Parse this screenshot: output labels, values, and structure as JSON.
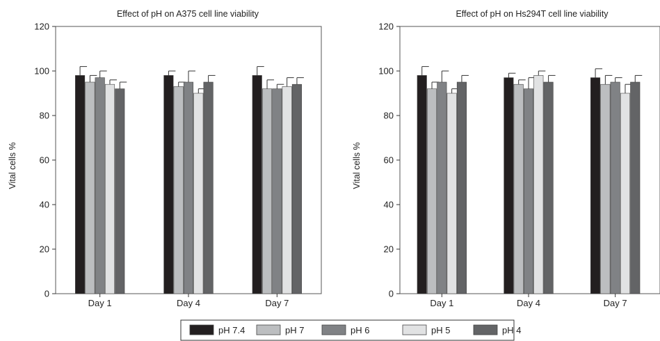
{
  "chart_data": [
    {
      "type": "bar",
      "title": "Effect of pH on A375 cell line viability",
      "ylabel": "Vital cells %",
      "xlabel": "",
      "ylim": [
        0,
        120
      ],
      "yticks": [
        0,
        20,
        40,
        60,
        80,
        100,
        120
      ],
      "categories": [
        "Day 1",
        "Day 4",
        "Day 7"
      ],
      "series": [
        {
          "name": "pH 7.4",
          "color": "#231f20",
          "values": [
            98,
            98,
            98
          ],
          "errors": [
            4,
            2,
            4
          ]
        },
        {
          "name": "pH 7",
          "color": "#bcbec0",
          "values": [
            95,
            93,
            92
          ],
          "errors": [
            3,
            2,
            4
          ]
        },
        {
          "name": "pH 6",
          "color": "#808285",
          "values": [
            97,
            95,
            92
          ],
          "errors": [
            3,
            5,
            2
          ]
        },
        {
          "name": "pH 5",
          "color": "#e1e2e3",
          "values": [
            94,
            90,
            93
          ],
          "errors": [
            2,
            2,
            4
          ]
        },
        {
          "name": "pH 4",
          "color": "#636466",
          "values": [
            92,
            95,
            94
          ],
          "errors": [
            3,
            3,
            3
          ]
        }
      ]
    },
    {
      "type": "bar",
      "title": "Effect of pH on Hs294T cell line viability",
      "ylabel": "Vital cells %",
      "xlabel": "",
      "ylim": [
        0,
        120
      ],
      "yticks": [
        0,
        20,
        40,
        60,
        80,
        100,
        120
      ],
      "categories": [
        "Day 1",
        "Day 4",
        "Day 7"
      ],
      "series": [
        {
          "name": "pH 7.4",
          "color": "#231f20",
          "values": [
            98,
            97,
            97
          ],
          "errors": [
            4,
            2,
            4
          ]
        },
        {
          "name": "pH 7",
          "color": "#bcbec0",
          "values": [
            92,
            94,
            94
          ],
          "errors": [
            3,
            2,
            4
          ]
        },
        {
          "name": "pH 6",
          "color": "#808285",
          "values": [
            95,
            92,
            95
          ],
          "errors": [
            5,
            5,
            2
          ]
        },
        {
          "name": "pH 5",
          "color": "#e1e2e3",
          "values": [
            90,
            98,
            90
          ],
          "errors": [
            2,
            2,
            4
          ]
        },
        {
          "name": "pH 4",
          "color": "#636466",
          "values": [
            95,
            95,
            95
          ],
          "errors": [
            3,
            3,
            3
          ]
        }
      ]
    }
  ],
  "legend": {
    "placement": "bottom-center",
    "items": [
      {
        "label": "pH 7.4",
        "color": "#231f20"
      },
      {
        "label": "pH 7",
        "color": "#bcbec0"
      },
      {
        "label": "pH 6",
        "color": "#808285"
      },
      {
        "label": "pH 5",
        "color": "#e1e2e3"
      },
      {
        "label": "pH 4",
        "color": "#636466"
      }
    ]
  }
}
